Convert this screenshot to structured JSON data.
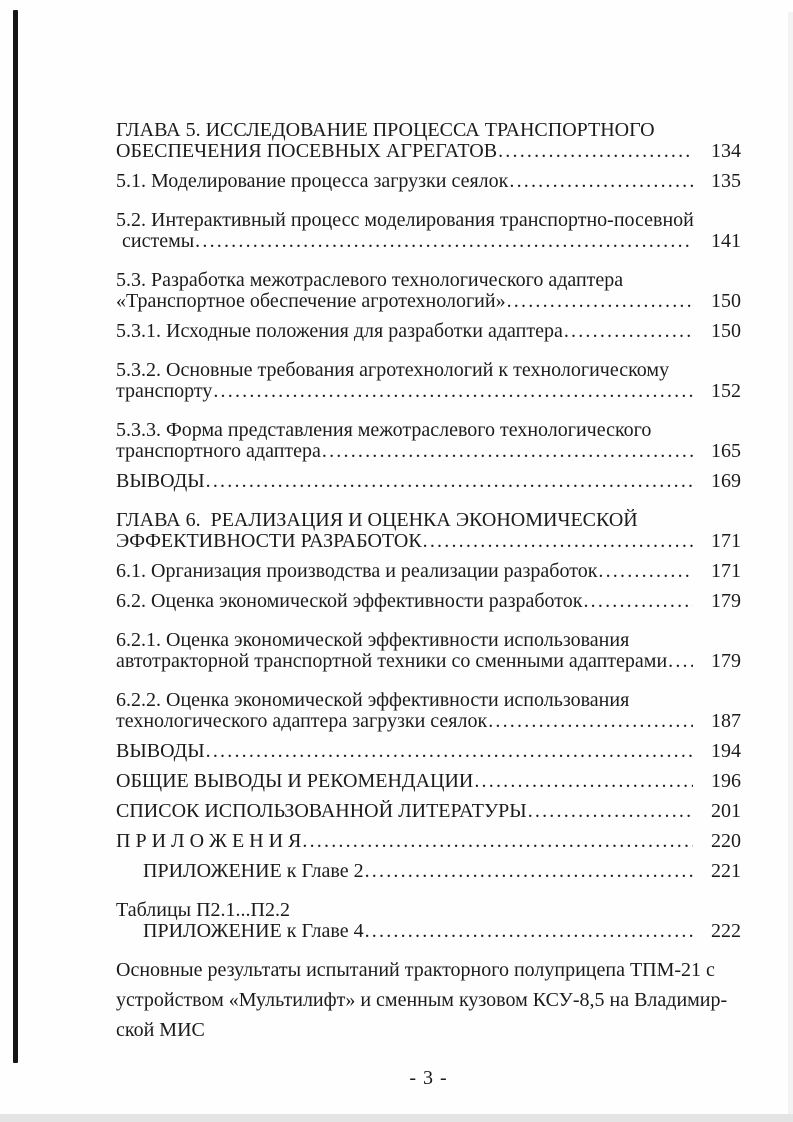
{
  "document": {
    "type": "table-of-contents-scan",
    "language": "ru",
    "footer_page_number": "- 3 -"
  },
  "toc": {
    "lines": [
      {
        "text": "ГЛАВА 5. ИССЛЕДОВАНИЕ ПРОЦЕССА ТРАНСПОРТНОГО",
        "page": "",
        "leader": false,
        "indent": 0
      },
      {
        "text": "ОБЕСПЕЧЕНИЯ ПОСЕВНЫХ АГРЕГАТОВ",
        "page": "134",
        "leader": true,
        "indent": 0
      },
      {
        "text": "5.1. Моделирование процесса загрузки сеялок",
        "page": "135",
        "leader": true,
        "indent": 0
      },
      {
        "text": "5.2. Интерактивный процесс моделирования транспортно-посевной",
        "page": "",
        "leader": false,
        "indent": 0
      },
      {
        "text": "системы",
        "page": "141",
        "leader": true,
        "indent": 6
      },
      {
        "text": "5.3. Разработка межотраслевого технологического адаптера",
        "page": "",
        "leader": false,
        "indent": 0
      },
      {
        "text": "«Транспортное обеспечение агротехнологий»",
        "page": "150",
        "leader": true,
        "indent": 0
      },
      {
        "text": "5.3.1. Исходные положения для разработки адаптера",
        "page": "150",
        "leader": true,
        "indent": 0
      },
      {
        "text": "5.3.2. Основные требования агротехнологий к технологическому",
        "page": "",
        "leader": false,
        "indent": 0
      },
      {
        "text": "транспорту",
        "page": "152",
        "leader": true,
        "indent": 0
      },
      {
        "text": "5.3.3. Форма представления межотраслевого технологического",
        "page": "",
        "leader": false,
        "indent": 0
      },
      {
        "text": "транспортного адаптера",
        "page": "165",
        "leader": true,
        "indent": 0
      },
      {
        "text": "ВЫВОДЫ",
        "page": "169",
        "leader": true,
        "indent": 0
      },
      {
        "text": "ГЛАВА 6.  РЕАЛИЗАЦИЯ И ОЦЕНКА ЭКОНОМИЧЕСКОЙ",
        "page": "",
        "leader": false,
        "indent": 0
      },
      {
        "text": "ЭФФЕКТИВНОСТИ РАЗРАБОТОК",
        "page": "171",
        "leader": true,
        "indent": 0
      },
      {
        "text": "6.1. Организация производства и реализации разработок",
        "page": "171",
        "leader": true,
        "indent": 0
      },
      {
        "text": "6.2. Оценка экономической эффективности разработок",
        "page": "179",
        "leader": true,
        "indent": 0
      },
      {
        "text": "6.2.1. Оценка экономической эффективности использования",
        "page": "",
        "leader": false,
        "indent": 0
      },
      {
        "text": "автотракторной транспортной техники со сменными адаптерами",
        "page": "179",
        "leader": true,
        "indent": 0
      },
      {
        "text": "6.2.2. Оценка экономической эффективности использования",
        "page": "",
        "leader": false,
        "indent": 0
      },
      {
        "text": "технологического адаптера загрузки сеялок",
        "page": "187",
        "leader": true,
        "indent": 0
      },
      {
        "text": "ВЫВОДЫ",
        "page": "194",
        "leader": true,
        "indent": 0
      },
      {
        "text": "ОБЩИЕ ВЫВОДЫ И РЕКОМЕНДАЦИИ",
        "page": "196",
        "leader": true,
        "indent": 0
      },
      {
        "text": "СПИСОК ИСПОЛЬЗОВАННОЙ ЛИТЕРАТУРЫ",
        "page": "201",
        "leader": true,
        "indent": 0
      },
      {
        "text": "П Р И Л О Ж Е Н И Я",
        "page": "220",
        "leader": true,
        "indent": 0
      },
      {
        "text": "ПРИЛОЖЕНИЕ к Главе 2",
        "page": "221",
        "leader": true,
        "indent": 27
      },
      {
        "text": "Таблицы П2.1...П2.2",
        "page": "",
        "leader": false,
        "indent": 0
      },
      {
        "text": "ПРИЛОЖЕНИЕ к Главе 4",
        "page": "222",
        "leader": true,
        "indent": 27
      },
      {
        "text": "Основные результаты испытаний тракторного полуприцепа ТПМ-21 с",
        "page": "",
        "leader": false,
        "indent": 0
      },
      {
        "text": "устройством «Мультилифт» и сменным кузовом КСУ-8,5 на Владимир-",
        "page": "",
        "leader": false,
        "indent": 0
      },
      {
        "text": "ской МИС",
        "page": "",
        "leader": false,
        "indent": 0
      }
    ]
  }
}
